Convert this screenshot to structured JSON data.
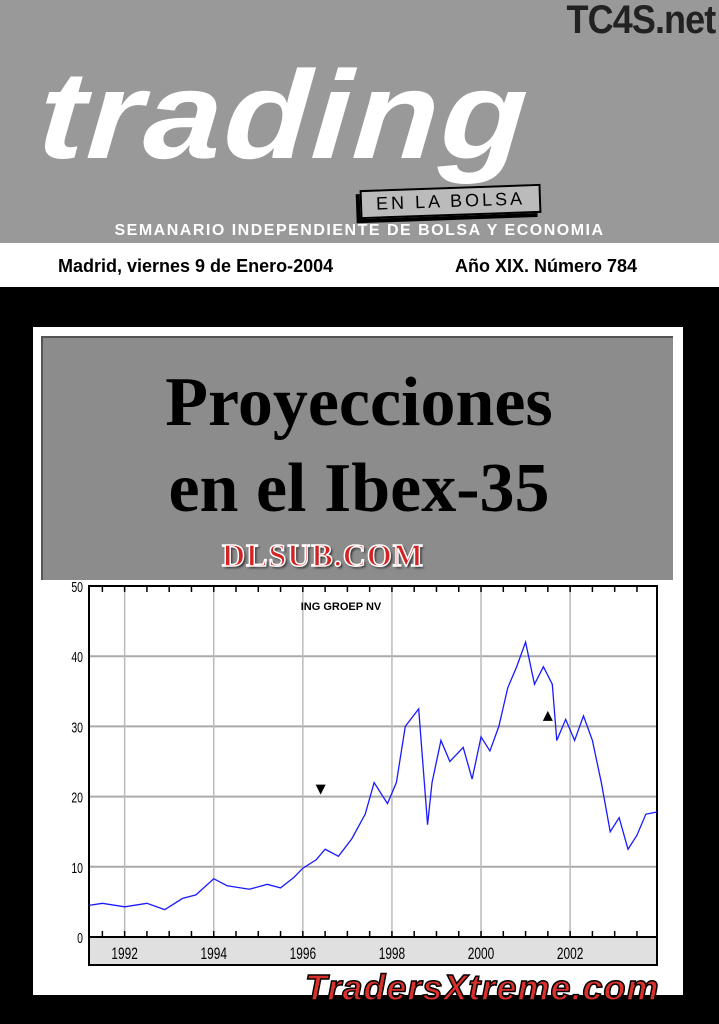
{
  "masthead": {
    "title": "trading",
    "tagline": "EN LA BOLSA",
    "subtitle": "SEMANARIO INDEPENDIENTE DE BOLSA Y ECONOMIA",
    "watermark_top": "TC4S.net"
  },
  "issue": {
    "date": "Madrid, viernes 9 de Enero-2004",
    "number": "Año XIX. Número 784"
  },
  "headline": {
    "line1": "Proyecciones",
    "line2": "en el Ibex-35"
  },
  "watermarks": {
    "middle": "DLSUB.COM",
    "bottom": "TradersXtreme.com"
  },
  "chart_data": {
    "type": "line",
    "title": "ING GROEP NV",
    "xlabel": "",
    "ylabel": "",
    "xlim": [
      1991.2,
      2003.95
    ],
    "ylim": [
      0,
      50
    ],
    "yticks": [
      0,
      10,
      20,
      30,
      40,
      50
    ],
    "xticks": [
      "1992",
      "1994",
      "1996",
      "1998",
      "2000",
      "2002"
    ],
    "grid": true,
    "color": "#1a1aff",
    "series": [
      {
        "x": [
          1991.2,
          1991.5,
          1992,
          1992.5,
          1992.9,
          1993.3,
          1993.6,
          1994,
          1994.3,
          1994.8,
          1995.2,
          1995.5,
          1995.8,
          1996,
          1996.3,
          1996.5,
          1996.8,
          1997.1,
          1997.4,
          1997.6,
          1997.9,
          1998.1,
          1998.3,
          1998.6,
          1998.8,
          1998.9,
          1999.1,
          1999.3,
          1999.6,
          1999.8,
          2000,
          2000.2,
          2000.4,
          2000.6,
          2000.8,
          2001,
          2001.2,
          2001.4,
          2001.6,
          2001.7,
          2001.9,
          2002.1,
          2002.3,
          2002.5,
          2002.7,
          2002.9,
          2003.1,
          2003.3,
          2003.5,
          2003.7,
          2003.95
        ],
        "y": [
          4.5,
          4.8,
          4.3,
          4.8,
          3.9,
          5.5,
          6,
          8.3,
          7.3,
          6.8,
          7.5,
          7,
          8.5,
          9.8,
          11,
          12.5,
          11.5,
          14,
          17.5,
          22,
          19,
          22,
          30,
          32.5,
          16,
          22,
          28,
          25,
          27,
          22.5,
          28.5,
          26.5,
          30,
          35.5,
          38.5,
          42,
          36,
          38.5,
          36,
          28,
          31,
          28,
          31.5,
          28,
          22,
          15,
          17,
          12.5,
          14.5,
          17.5,
          17.8
        ]
      }
    ],
    "annotations": [
      {
        "type": "down-triangle",
        "x": 1996.4,
        "y": 21
      },
      {
        "type": "up-triangle",
        "x": 2001.5,
        "y": 31.5
      }
    ]
  }
}
